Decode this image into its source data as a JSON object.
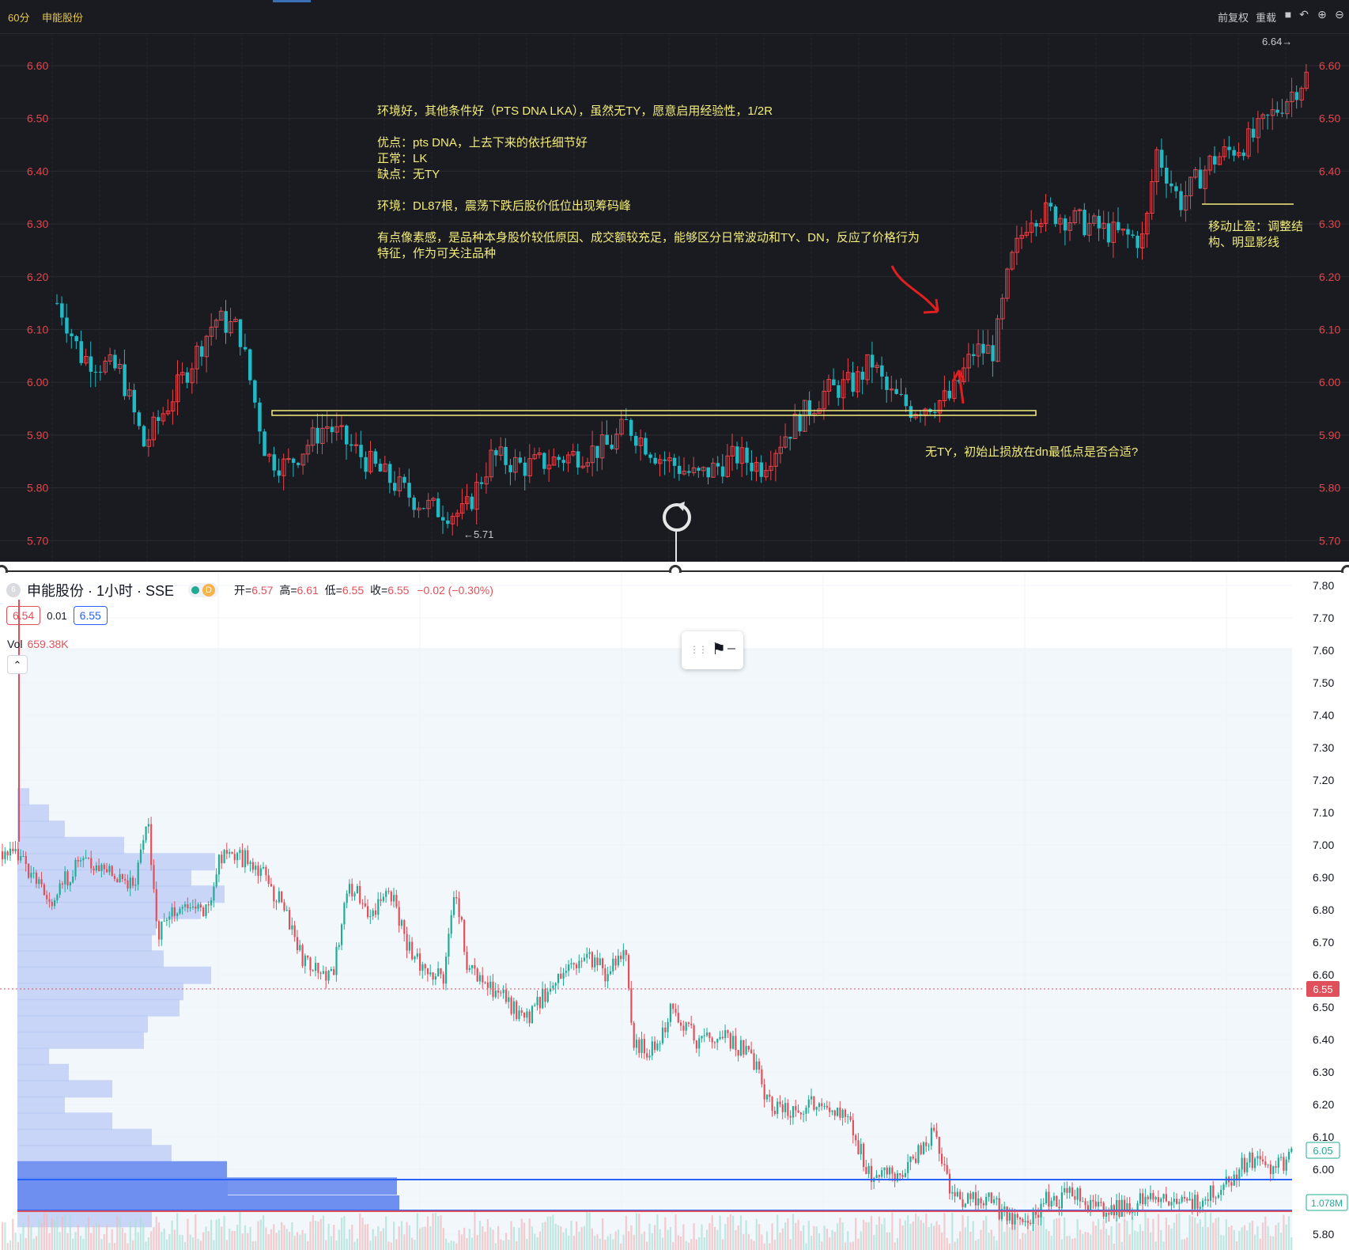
{
  "top": {
    "interval": "60分",
    "stock": "申能股份",
    "right_buttons": [
      "前复权",
      "重载"
    ],
    "y_labels": [
      "6.60",
      "6.50",
      "6.40",
      "6.30",
      "6.20",
      "6.10",
      "6.00",
      "5.90",
      "5.80",
      "5.70"
    ],
    "high_label": "6.64→",
    "low_label": "←5.71",
    "annotations": {
      "main": "环境好，其他条件好（PTS DNA LKA），虽然无TY，愿意启用经验性，1/2R\n\n优点：pts DNA，上去下来的依托细节好\n正常：LK\n缺点：无TY\n\n环境：DL87根，震荡下跌后股价低位出现筹码峰\n\n有点像素感，是品种本身股价较低原因、成交额较充足，能够区分日常波动和TY、DN，反应了价格行为\n特征，作为可关注品种",
      "question": "无TY，初始止损放在dn最低点是否合适?",
      "trailing": "移动止盈：调整结\n构、明显影线"
    }
  },
  "bottom": {
    "symbol": "申能股份 · 1小时 · SSE",
    "symbol_initial": "6",
    "status_letter": "D",
    "ohlc": {
      "o_label": "开=",
      "o": "6.57",
      "h_label": "高=",
      "h": "6.61",
      "l_label": "低=",
      "l": "6.55",
      "c_label": "收=",
      "c": "6.55",
      "change": "−0.02 (−0.30%)"
    },
    "sell_price": "6.54",
    "spread": "0.01",
    "buy_price": "6.55",
    "vol_label": "Vol",
    "vol_value": "659.38K",
    "y_labels": [
      "7.80",
      "7.70",
      "7.60",
      "7.50",
      "7.40",
      "7.30",
      "7.20",
      "7.10",
      "7.00",
      "6.90",
      "6.80",
      "6.70",
      "6.60",
      "6.50",
      "6.40",
      "6.30",
      "6.20",
      "6.10",
      "6.00",
      "5.90",
      "5.80"
    ],
    "last_price": "6.55",
    "price_tag_2": "6.05",
    "vol_tag": "1.078M"
  },
  "colors": {
    "top_up": "#e9434a",
    "top_down": "#22b8c4",
    "bottom_up": "#e0505a",
    "bottom_down": "#22ab94",
    "annotation": "#f2ec7a",
    "profile": "#b9c9f5",
    "profile_poc": "#6f8ff0"
  }
}
